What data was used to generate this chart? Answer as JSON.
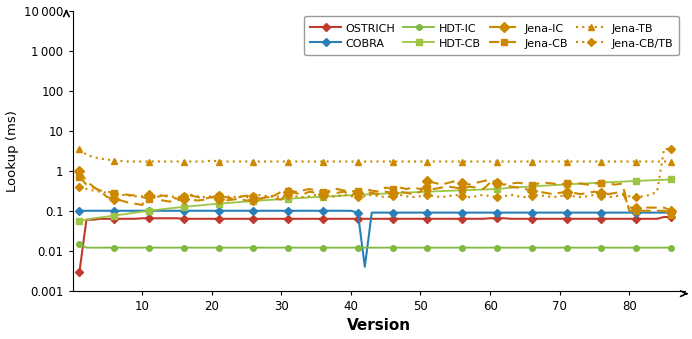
{
  "versions": [
    1,
    2,
    3,
    4,
    5,
    6,
    7,
    8,
    9,
    10,
    11,
    12,
    13,
    14,
    15,
    16,
    17,
    18,
    19,
    20,
    21,
    22,
    23,
    24,
    25,
    26,
    27,
    28,
    29,
    30,
    31,
    32,
    33,
    34,
    35,
    36,
    37,
    38,
    39,
    40,
    41,
    42,
    43,
    44,
    45,
    46,
    47,
    48,
    49,
    50,
    51,
    52,
    53,
    54,
    55,
    56,
    57,
    58,
    59,
    60,
    61,
    62,
    63,
    64,
    65,
    66,
    67,
    68,
    69,
    70,
    71,
    72,
    73,
    74,
    75,
    76,
    77,
    78,
    79,
    80,
    81,
    82,
    83,
    84,
    85,
    86
  ],
  "OSTRICH": [
    0.003,
    0.06,
    0.06,
    0.063,
    0.063,
    0.063,
    0.063,
    0.063,
    0.063,
    0.065,
    0.065,
    0.065,
    0.065,
    0.065,
    0.065,
    0.063,
    0.063,
    0.063,
    0.063,
    0.063,
    0.063,
    0.063,
    0.063,
    0.063,
    0.063,
    0.063,
    0.063,
    0.063,
    0.063,
    0.063,
    0.063,
    0.063,
    0.063,
    0.063,
    0.063,
    0.063,
    0.063,
    0.063,
    0.063,
    0.063,
    0.063,
    0.063,
    0.063,
    0.063,
    0.063,
    0.063,
    0.063,
    0.063,
    0.063,
    0.063,
    0.063,
    0.063,
    0.063,
    0.063,
    0.063,
    0.063,
    0.063,
    0.063,
    0.063,
    0.065,
    0.065,
    0.065,
    0.063,
    0.063,
    0.063,
    0.063,
    0.063,
    0.063,
    0.063,
    0.063,
    0.063,
    0.063,
    0.063,
    0.063,
    0.063,
    0.063,
    0.063,
    0.063,
    0.063,
    0.063,
    0.063,
    0.063,
    0.063,
    0.063,
    0.07,
    0.07
  ],
  "COBRA": [
    0.1,
    0.1,
    0.1,
    0.1,
    0.1,
    0.1,
    0.1,
    0.1,
    0.1,
    0.1,
    0.1,
    0.1,
    0.1,
    0.1,
    0.1,
    0.1,
    0.1,
    0.1,
    0.1,
    0.1,
    0.1,
    0.1,
    0.1,
    0.1,
    0.1,
    0.1,
    0.1,
    0.1,
    0.1,
    0.1,
    0.1,
    0.1,
    0.1,
    0.1,
    0.1,
    0.1,
    0.1,
    0.1,
    0.1,
    0.1,
    0.09,
    0.004,
    0.09,
    0.09,
    0.09,
    0.09,
    0.09,
    0.09,
    0.09,
    0.09,
    0.09,
    0.09,
    0.09,
    0.09,
    0.09,
    0.09,
    0.09,
    0.09,
    0.09,
    0.09,
    0.09,
    0.09,
    0.09,
    0.09,
    0.09,
    0.09,
    0.09,
    0.09,
    0.09,
    0.09,
    0.09,
    0.09,
    0.09,
    0.09,
    0.09,
    0.09,
    0.09,
    0.09,
    0.09,
    0.09,
    0.09,
    0.09,
    0.09,
    0.09,
    0.09,
    0.09
  ],
  "HDT-IC": [
    0.015,
    0.012,
    0.012,
    0.012,
    0.012,
    0.012,
    0.012,
    0.012,
    0.012,
    0.012,
    0.012,
    0.012,
    0.012,
    0.012,
    0.012,
    0.012,
    0.012,
    0.012,
    0.012,
    0.012,
    0.012,
    0.012,
    0.012,
    0.012,
    0.012,
    0.012,
    0.012,
    0.012,
    0.012,
    0.012,
    0.012,
    0.012,
    0.012,
    0.012,
    0.012,
    0.012,
    0.012,
    0.012,
    0.012,
    0.012,
    0.012,
    0.012,
    0.012,
    0.012,
    0.012,
    0.012,
    0.012,
    0.012,
    0.012,
    0.012,
    0.012,
    0.012,
    0.012,
    0.012,
    0.012,
    0.012,
    0.012,
    0.012,
    0.012,
    0.012,
    0.012,
    0.012,
    0.012,
    0.012,
    0.012,
    0.012,
    0.012,
    0.012,
    0.012,
    0.012,
    0.012,
    0.012,
    0.012,
    0.012,
    0.012,
    0.012,
    0.012,
    0.012,
    0.012,
    0.012,
    0.012,
    0.012,
    0.012,
    0.012,
    0.012,
    0.012
  ],
  "HDT-CB": [
    0.055,
    0.06,
    0.065,
    0.068,
    0.072,
    0.076,
    0.08,
    0.085,
    0.09,
    0.095,
    0.1,
    0.105,
    0.11,
    0.115,
    0.12,
    0.125,
    0.13,
    0.135,
    0.14,
    0.145,
    0.15,
    0.155,
    0.16,
    0.165,
    0.17,
    0.175,
    0.18,
    0.185,
    0.19,
    0.195,
    0.2,
    0.205,
    0.21,
    0.215,
    0.22,
    0.225,
    0.23,
    0.235,
    0.24,
    0.245,
    0.25,
    0.255,
    0.26,
    0.265,
    0.27,
    0.275,
    0.28,
    0.285,
    0.29,
    0.295,
    0.3,
    0.305,
    0.31,
    0.315,
    0.32,
    0.325,
    0.33,
    0.335,
    0.34,
    0.345,
    0.355,
    0.365,
    0.375,
    0.385,
    0.395,
    0.405,
    0.415,
    0.425,
    0.435,
    0.445,
    0.455,
    0.465,
    0.475,
    0.485,
    0.495,
    0.505,
    0.515,
    0.525,
    0.535,
    0.545,
    0.555,
    0.565,
    0.575,
    0.585,
    0.595,
    0.605
  ],
  "Jena-IC": [
    1.0,
    0.55,
    0.4,
    0.3,
    0.22,
    0.2,
    0.18,
    0.16,
    0.15,
    0.14,
    0.25,
    0.2,
    0.18,
    0.17,
    0.18,
    0.2,
    0.19,
    0.18,
    0.19,
    0.22,
    0.2,
    0.18,
    0.19,
    0.2,
    0.18,
    0.19,
    0.2,
    0.22,
    0.2,
    0.19,
    0.3,
    0.28,
    0.25,
    0.3,
    0.28,
    0.26,
    0.3,
    0.28,
    0.3,
    0.25,
    0.28,
    0.3,
    0.28,
    0.26,
    0.3,
    0.28,
    0.3,
    0.28,
    0.26,
    0.3,
    0.55,
    0.5,
    0.45,
    0.5,
    0.55,
    0.5,
    0.45,
    0.5,
    0.55,
    0.6,
    0.5,
    0.45,
    0.4,
    0.38,
    0.35,
    0.32,
    0.3,
    0.28,
    0.26,
    0.28,
    0.3,
    0.28,
    0.26,
    0.28,
    0.3,
    0.28,
    0.26,
    0.28,
    0.3,
    0.12,
    0.12,
    0.12,
    0.12,
    0.12,
    0.12,
    0.1
  ],
  "Jena-CB": [
    0.7,
    0.45,
    0.38,
    0.32,
    0.3,
    0.28,
    0.26,
    0.25,
    0.24,
    0.22,
    0.2,
    0.22,
    0.24,
    0.22,
    0.2,
    0.22,
    0.24,
    0.22,
    0.2,
    0.22,
    0.24,
    0.22,
    0.2,
    0.22,
    0.24,
    0.22,
    0.2,
    0.22,
    0.24,
    0.3,
    0.32,
    0.3,
    0.32,
    0.35,
    0.32,
    0.3,
    0.32,
    0.35,
    0.32,
    0.3,
    0.32,
    0.35,
    0.32,
    0.3,
    0.38,
    0.35,
    0.38,
    0.35,
    0.38,
    0.35,
    0.38,
    0.35,
    0.38,
    0.4,
    0.38,
    0.35,
    0.4,
    0.38,
    0.35,
    0.5,
    0.48,
    0.45,
    0.48,
    0.5,
    0.48,
    0.45,
    0.48,
    0.5,
    0.48,
    0.45,
    0.48,
    0.5,
    0.48,
    0.45,
    0.48,
    0.5,
    0.48,
    0.45,
    0.48,
    0.1,
    0.1,
    0.1,
    0.1,
    0.1,
    0.1,
    0.08
  ],
  "Jena-TB": [
    3.5,
    2.5,
    2.2,
    2.0,
    1.9,
    1.8,
    1.75,
    1.7,
    1.7,
    1.7,
    1.7,
    1.7,
    1.7,
    1.7,
    1.7,
    1.7,
    1.7,
    1.7,
    1.7,
    1.8,
    1.7,
    1.7,
    1.7,
    1.7,
    1.7,
    1.7,
    1.7,
    1.7,
    1.7,
    1.7,
    1.7,
    1.7,
    1.7,
    1.7,
    1.7,
    1.7,
    1.7,
    1.7,
    1.7,
    1.7,
    1.7,
    1.7,
    1.7,
    1.7,
    1.7,
    1.7,
    1.7,
    1.7,
    1.7,
    1.7,
    1.7,
    1.7,
    1.7,
    1.7,
    1.7,
    1.7,
    1.7,
    1.7,
    1.7,
    1.7,
    1.7,
    1.7,
    1.7,
    1.7,
    1.7,
    1.7,
    1.7,
    1.7,
    1.7,
    1.7,
    1.7,
    1.7,
    1.7,
    1.7,
    1.7,
    1.7,
    1.7,
    1.7,
    1.7,
    1.7,
    1.7,
    1.7,
    1.7,
    1.7,
    1.7,
    1.7
  ],
  "Jena-CB/TB": [
    0.4,
    0.35,
    0.32,
    0.3,
    0.28,
    0.26,
    0.25,
    0.24,
    0.23,
    0.23,
    0.23,
    0.23,
    0.25,
    0.23,
    0.22,
    0.23,
    0.25,
    0.23,
    0.22,
    0.23,
    0.25,
    0.23,
    0.22,
    0.23,
    0.22,
    0.23,
    0.25,
    0.23,
    0.22,
    0.23,
    0.25,
    0.23,
    0.22,
    0.23,
    0.25,
    0.23,
    0.22,
    0.23,
    0.25,
    0.23,
    0.22,
    0.23,
    0.25,
    0.23,
    0.22,
    0.23,
    0.25,
    0.23,
    0.22,
    0.23,
    0.25,
    0.23,
    0.22,
    0.23,
    0.25,
    0.23,
    0.22,
    0.23,
    0.25,
    0.23,
    0.22,
    0.23,
    0.25,
    0.23,
    0.22,
    0.23,
    0.25,
    0.23,
    0.22,
    0.23,
    0.25,
    0.23,
    0.22,
    0.23,
    0.25,
    0.23,
    0.22,
    0.23,
    0.25,
    0.23,
    0.22,
    0.23,
    0.25,
    0.3,
    3.5,
    3.5
  ],
  "xlim": [
    0,
    88
  ],
  "ylim": [
    0.001,
    10000
  ],
  "xticks": [
    10,
    20,
    30,
    40,
    50,
    60,
    70,
    80
  ],
  "yticks": [
    0.001,
    0.01,
    0.1,
    1,
    10,
    100,
    1000,
    10000
  ],
  "ytick_labels": [
    "0.001",
    "0.01",
    "0.1",
    "1",
    "10",
    "100",
    "1 000",
    "10 000"
  ],
  "xlabel": "Version",
  "ylabel": "Lookup (ms)"
}
